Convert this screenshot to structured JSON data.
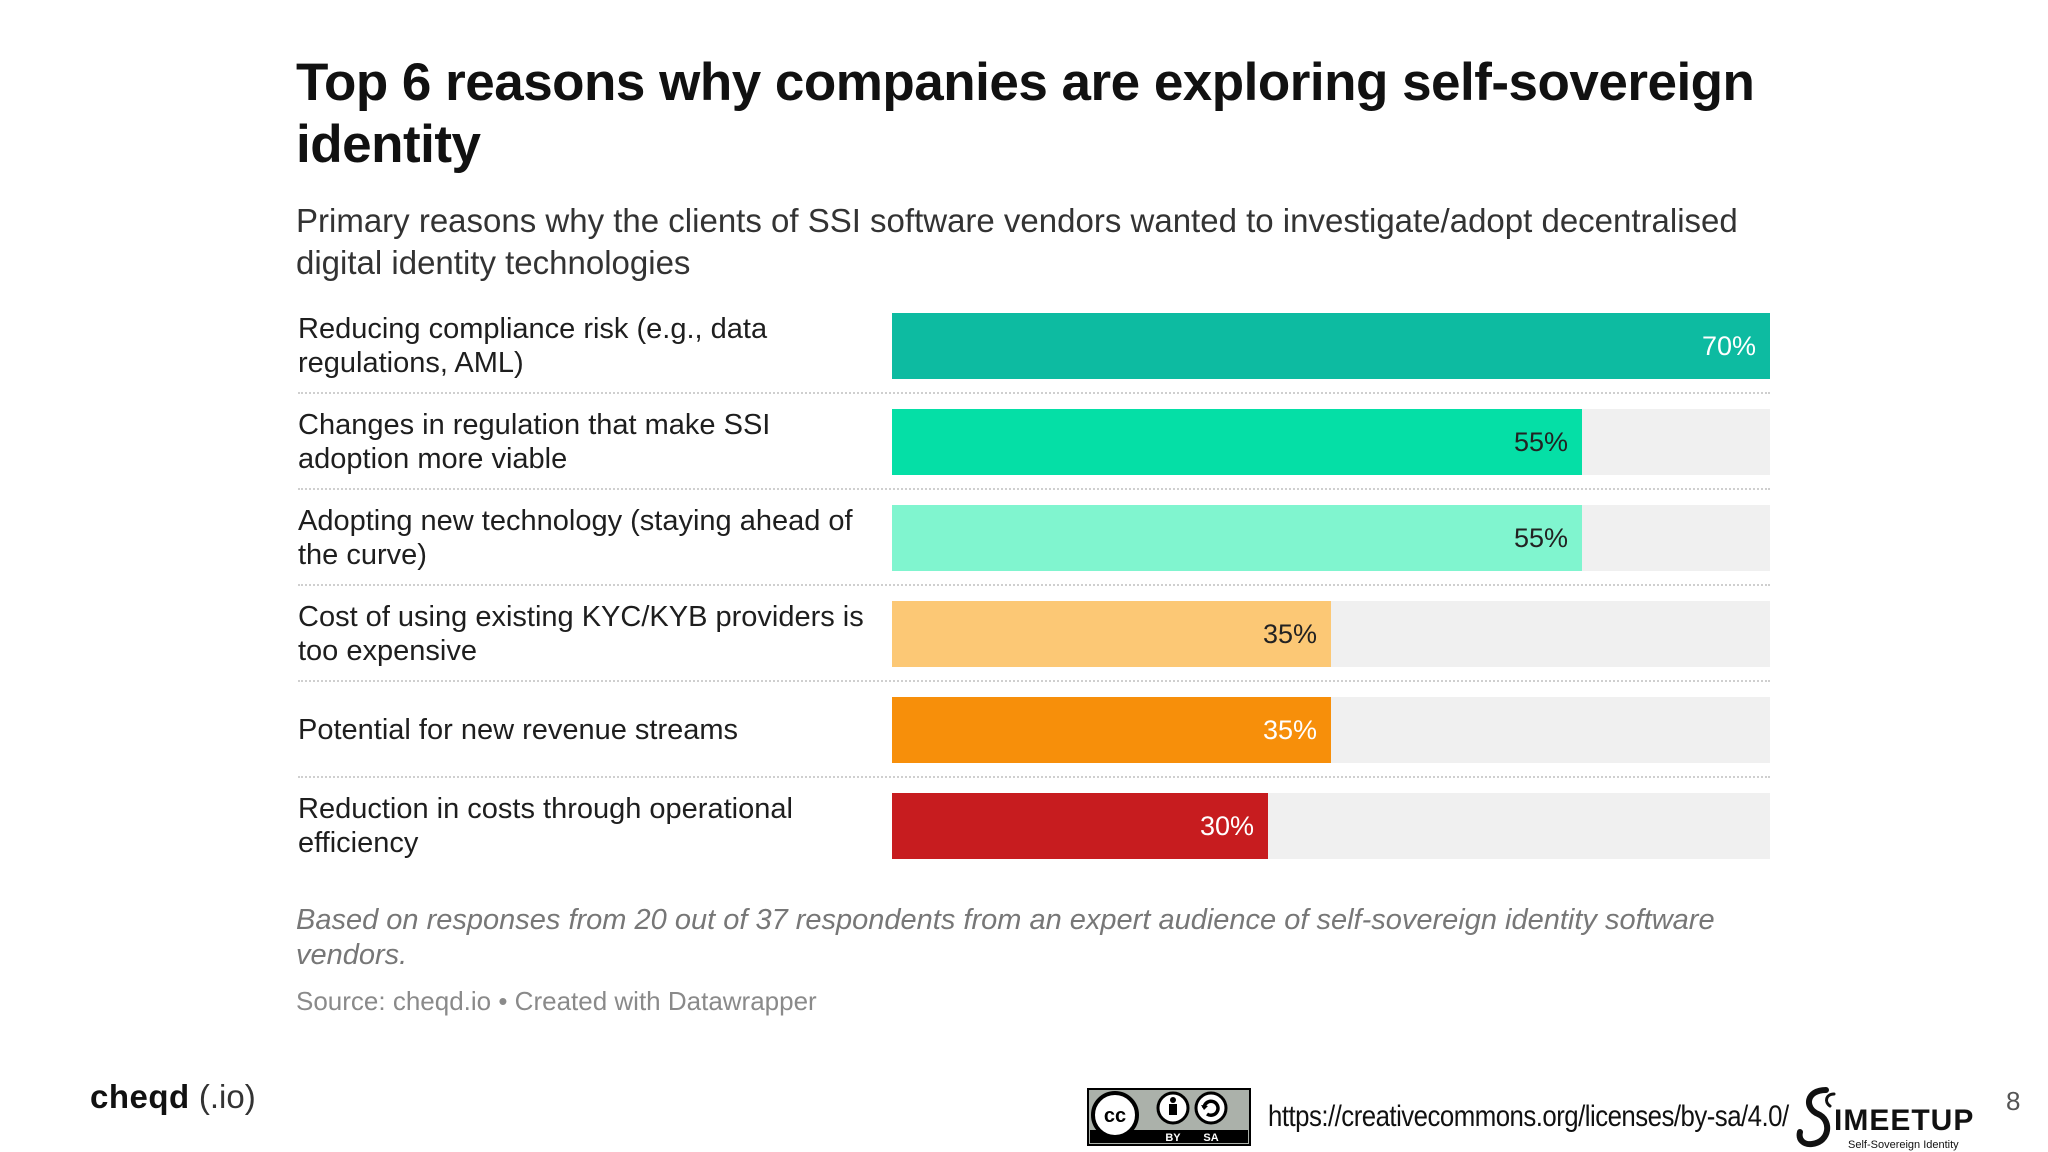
{
  "slide": {
    "title": "Top 6 reasons why companies are exploring self-sovereign identity",
    "subtitle": "Primary reasons why the clients of SSI software vendors wanted to investigate/adopt decentralised digital identity technologies",
    "note": "Based on responses from 20 out of 37 respondents from an expert audience of self-sovereign identity software vendors.",
    "source": "Source: cheqd.io • Created with Datawrapper",
    "brand_main": "cheqd",
    "brand_suffix": "(.io)",
    "license_url": "https://creativecommons.org/licenses/by-sa/4.0/",
    "license_badge_text": [
      "cc",
      "BY",
      "SA"
    ],
    "meetup_logo_text": [
      "IMEETUP",
      "Self-Sovereign Identity"
    ],
    "page_number": "8"
  },
  "chart_data": {
    "type": "bar",
    "orientation": "horizontal",
    "title": "Top 6 reasons why companies are exploring self-sovereign identity",
    "subtitle": "Primary reasons why the clients of SSI software vendors wanted to investigate/adopt decentralised digital identity technologies",
    "xlim": [
      0,
      70
    ],
    "unit": "%",
    "categories": [
      "Reducing compliance risk (e.g., data regulations, AML)",
      "Changes in regulation that make SSI adoption more viable",
      "Adopting new technology (staying ahead of the curve)",
      "Cost of using existing KYC/KYB providers is too expensive",
      "Potential for new revenue streams",
      "Reduction in costs through operational efficiency"
    ],
    "values": [
      70,
      55,
      55,
      35,
      35,
      30
    ],
    "value_labels": [
      "70%",
      "55%",
      "55%",
      "35%",
      "35%",
      "30%"
    ],
    "colors": [
      "#0dbba1",
      "#05dfa6",
      "#80f5cf",
      "#fcc875",
      "#f78f0a",
      "#c71c1f"
    ],
    "label_colors": [
      "#ffffff",
      "#222222",
      "#222222",
      "#222222",
      "#ffffff",
      "#ffffff"
    ]
  }
}
